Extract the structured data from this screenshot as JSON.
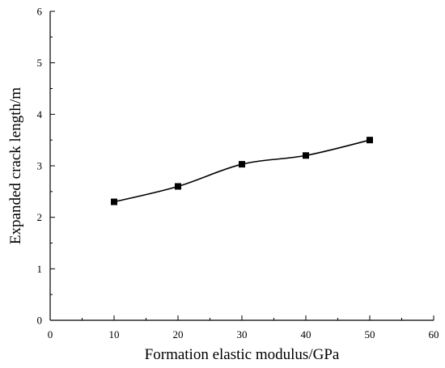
{
  "chart_data": {
    "type": "line",
    "xlabel": "Formation elastic modulus/GPa",
    "ylabel": "Expanded crack length/m",
    "xlim": [
      0,
      60
    ],
    "ylim": [
      0,
      6
    ],
    "xticks": [
      "0",
      "10",
      "20",
      "30",
      "40",
      "50",
      "60"
    ],
    "yticks": [
      "0",
      "1",
      "2",
      "3",
      "4",
      "5",
      "6"
    ],
    "x_major_step": 10,
    "x_minor_step": 5,
    "y_major_step": 1,
    "y_minor_step": 0.5,
    "grid": false,
    "series": [
      {
        "x": [
          10,
          20,
          30,
          40,
          50
        ],
        "values": [
          2.3,
          2.6,
          3.03,
          3.2,
          3.5
        ],
        "marker": "square",
        "color": "#000000"
      }
    ]
  }
}
